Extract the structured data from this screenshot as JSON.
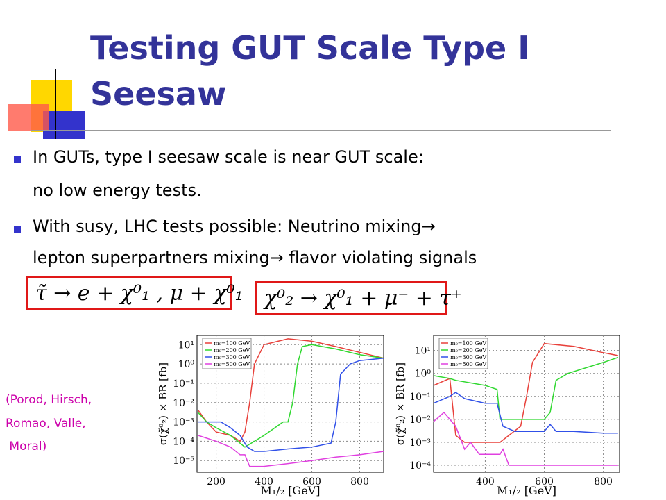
{
  "slide": {
    "title": "Testing GUT Scale Type I Seesaw",
    "bullets": [
      {
        "lines": [
          "In GUTs, type I seesaw scale is near GUT scale:",
          "no low energy tests."
        ]
      },
      {
        "lines": [
          "With susy, LHC tests possible: Neutrino mixing→",
          "lepton superpartners mixing→ flavor violating signals"
        ]
      }
    ],
    "formulas": [
      "τ̃ → e + χ⁰₁ , μ + χ⁰₁",
      "χ⁰₂ → χ⁰₁ + μ⁻ + τ⁺"
    ],
    "citation": [
      "(Porod, Hirsch,",
      "Romao, Valle,",
      " Moral)"
    ]
  },
  "chart_data": [
    {
      "type": "line",
      "x_label": "M₁/₂ [GeV]",
      "y_label": "σ(χ̃⁰₂) × BR [fb]",
      "log_y": true,
      "grid": true,
      "legend": "upper left",
      "xlim": [
        120,
        900
      ],
      "xticks": [
        200,
        400,
        600,
        800
      ],
      "ylim": [
        2.5e-06,
        30
      ],
      "yticks": [
        {
          "value": 10,
          "label": "10¹"
        },
        {
          "value": 1,
          "label": "10⁰"
        },
        {
          "value": 0.1,
          "label": "10⁻¹"
        },
        {
          "value": 0.01,
          "label": "10⁻²"
        },
        {
          "value": 0.001,
          "label": "10⁻³"
        },
        {
          "value": 0.0001,
          "label": "10⁻⁴"
        },
        {
          "value": 1e-05,
          "label": "10⁻⁵"
        }
      ],
      "series": [
        {
          "name": "m₀=100 GeV",
          "color": "#e8403a",
          "x": [
            125,
            160,
            200,
            260,
            300,
            320,
            340,
            360,
            400,
            500,
            600,
            700,
            800,
            900
          ],
          "values": [
            0.004,
            0.001,
            0.0003,
            0.0002,
            0.0001,
            0.0003,
            0.01,
            1,
            10,
            20,
            15,
            8,
            4,
            2
          ]
        },
        {
          "name": "m₀=200 GeV",
          "color": "#2fd82f",
          "x": [
            125,
            160,
            200,
            260,
            320,
            360,
            400,
            480,
            500,
            520,
            540,
            560,
            600,
            700,
            800,
            900
          ],
          "values": [
            0.003,
            0.001,
            0.0005,
            0.0002,
            5e-05,
            0.0001,
            0.0002,
            0.001,
            0.001,
            0.01,
            1,
            8,
            10,
            6,
            3,
            2
          ]
        },
        {
          "name": "m₀=300 GeV",
          "color": "#3050e8",
          "x": [
            125,
            180,
            220,
            260,
            300,
            330,
            360,
            400,
            500,
            600,
            680,
            700,
            720,
            760,
            800,
            900
          ],
          "values": [
            0.001,
            0.001,
            0.001,
            0.0005,
            0.0002,
            5e-05,
            3e-05,
            3e-05,
            4e-05,
            5e-05,
            8e-05,
            0.001,
            0.3,
            1,
            1.5,
            2
          ]
        },
        {
          "name": "m₀=500 GeV",
          "color": "#e040e0",
          "x": [
            125,
            200,
            260,
            300,
            320,
            340,
            400,
            500,
            600,
            700,
            800,
            900
          ],
          "values": [
            0.0002,
            0.0001,
            5e-05,
            2e-05,
            2e-05,
            5e-06,
            5e-06,
            7e-06,
            1e-05,
            1.5e-05,
            2e-05,
            3e-05
          ]
        }
      ]
    },
    {
      "type": "line",
      "x_label": "M₁/₂ [GeV]",
      "y_label": "σ(χ̃⁰₂) × BR [fb]",
      "log_y": true,
      "grid": true,
      "legend": "upper left",
      "xlim": [
        225,
        855
      ],
      "xticks": [
        400,
        600,
        800
      ],
      "ylim": [
        5e-05,
        45
      ],
      "yticks": [
        {
          "value": 10,
          "label": "10¹"
        },
        {
          "value": 1,
          "label": "10⁰"
        },
        {
          "value": 0.1,
          "label": "10⁻¹"
        },
        {
          "value": 0.01,
          "label": "10⁻²"
        },
        {
          "value": 0.001,
          "label": "10⁻³"
        },
        {
          "value": 0.0001,
          "label": "10⁻⁴"
        }
      ],
      "series": [
        {
          "name": "m₀=100 GeV",
          "color": "#e8403a",
          "x": [
            225,
            280,
            300,
            330,
            400,
            450,
            480,
            520,
            540,
            560,
            600,
            700,
            800,
            850
          ],
          "values": [
            0.3,
            0.6,
            0.002,
            0.001,
            0.001,
            0.001,
            0.002,
            0.005,
            0.1,
            3,
            20,
            15,
            8,
            6
          ]
        },
        {
          "name": "m₀=200 GeV",
          "color": "#2fd82f",
          "x": [
            225,
            280,
            300,
            400,
            440,
            450,
            500,
            560,
            600,
            620,
            640,
            680,
            800,
            850
          ],
          "values": [
            0.8,
            0.6,
            0.5,
            0.3,
            0.2,
            0.01,
            0.01,
            0.01,
            0.01,
            0.02,
            0.5,
            1,
            3,
            5
          ]
        },
        {
          "name": "m₀=300 GeV",
          "color": "#3050e8",
          "x": [
            225,
            280,
            300,
            330,
            400,
            440,
            460,
            500,
            600,
            620,
            640,
            700,
            800,
            850
          ],
          "values": [
            0.05,
            0.1,
            0.15,
            0.08,
            0.05,
            0.05,
            0.005,
            0.003,
            0.003,
            0.006,
            0.003,
            0.003,
            0.0025,
            0.0025
          ]
        },
        {
          "name": "m₀=500 GeV",
          "color": "#e040e0",
          "x": [
            225,
            260,
            300,
            330,
            350,
            380,
            400,
            450,
            460,
            480,
            600,
            700,
            850
          ],
          "values": [
            0.008,
            0.02,
            0.005,
            0.0005,
            0.001,
            0.0003,
            0.0003,
            0.0003,
            0.0005,
            0.0001,
            0.0001,
            0.0001,
            0.0001
          ]
        }
      ]
    }
  ]
}
